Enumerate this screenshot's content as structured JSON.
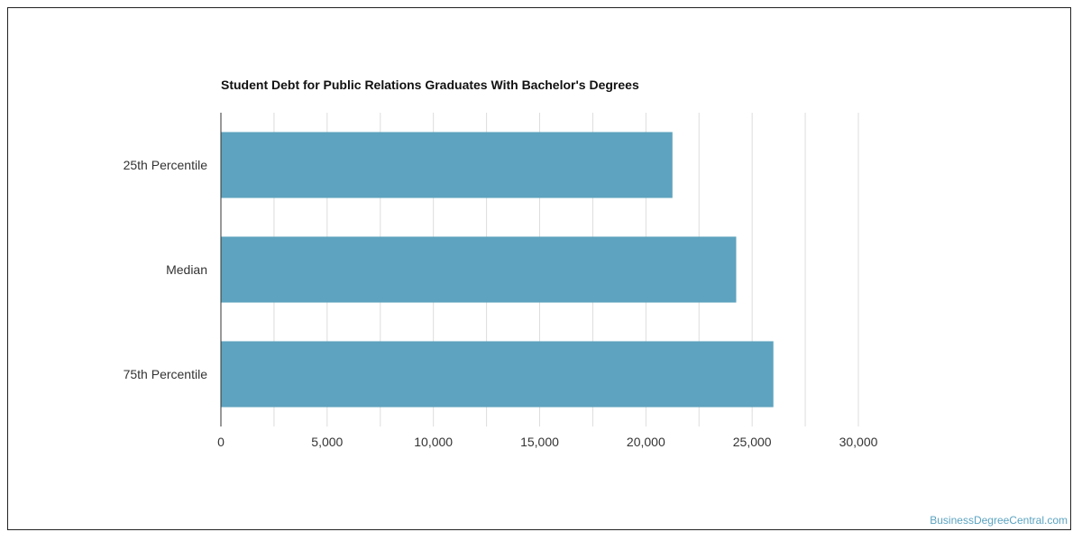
{
  "chart_data": {
    "type": "bar",
    "orientation": "horizontal",
    "title": "Student Debt for Public Relations Graduates With Bachelor's Degrees",
    "xlabel": "",
    "ylabel": "",
    "categories": [
      "25th Percentile",
      "Median",
      "75th Percentile"
    ],
    "values": [
      21250,
      24250,
      26000
    ],
    "xlim": [
      0,
      30000
    ],
    "xticks": [
      0,
      5000,
      10000,
      15000,
      20000,
      25000,
      30000
    ],
    "xtick_labels": [
      "0",
      "5,000",
      "10,000",
      "15,000",
      "20,000",
      "25,000",
      "30,000"
    ],
    "grid": true,
    "bar_color": "#5ea3bf"
  },
  "watermark": {
    "text": "BusinessDegreeCentral.com",
    "color": "#5ba3c0"
  }
}
